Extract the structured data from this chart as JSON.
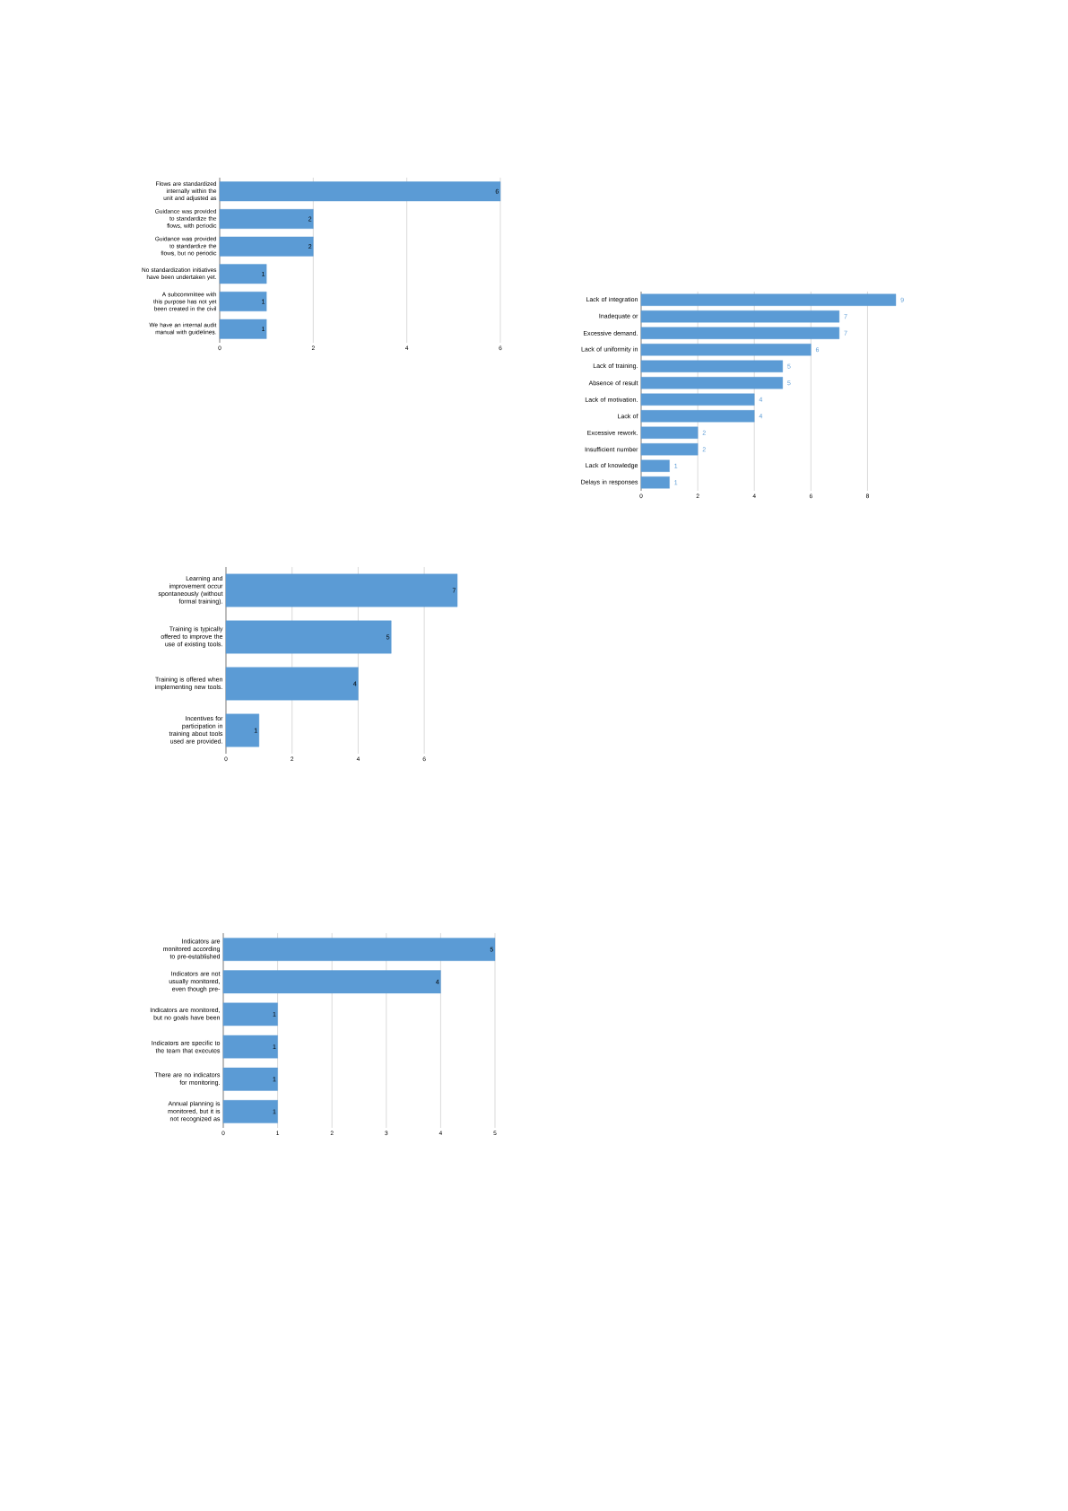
{
  "chart_data": [
    {
      "type": "bar",
      "orientation": "horizontal",
      "categories": [
        "Flows are standardized internally within the unit and adjusted as",
        "Guidance was provided to standardize the flows, with periodic",
        "Guidance was provided to standardize the flows, but no periodic",
        "No standardization initiatives have been undertaken yet.",
        "A subcommittee with this purpose has not yet been created in the civil",
        "We have an internal audit manual with guidelines."
      ],
      "values": [
        6,
        2,
        2,
        1,
        1,
        1
      ],
      "color": "#5b9bd5",
      "xlim": [
        0,
        6
      ],
      "xticks": [
        0,
        2,
        4,
        6
      ],
      "grid": "x",
      "data_labels": true
    },
    {
      "type": "bar",
      "orientation": "horizontal",
      "categories": [
        "Lack of integration",
        "Inadequate or",
        "Excessive demand.",
        "Lack of uniformity in",
        "Lack of training.",
        "Absence of result",
        "Lack of motivation.",
        "Lack of",
        "Excessive rework.",
        "Insufficient number",
        "Lack of knowledge",
        "Delays in responses"
      ],
      "values": [
        9,
        7,
        7,
        6,
        5,
        5,
        4,
        4,
        2,
        2,
        1,
        1
      ],
      "color": "#5b9bd5",
      "xlim": [
        0,
        9
      ],
      "xticks": [
        0,
        2,
        4,
        6,
        8
      ],
      "grid": "x",
      "data_labels": true
    },
    {
      "type": "bar",
      "orientation": "horizontal",
      "categories": [
        "Learning and improvement occur spontaneously (without formal training).",
        "Training is typically offered to improve the use of existing tools.",
        "Training is offered when implementing new tools.",
        "Incentives for participation in training about tools used are provided."
      ],
      "values": [
        7,
        5,
        4,
        1
      ],
      "color": "#5b9bd5",
      "xlim": [
        0,
        7
      ],
      "xticks": [
        0,
        2,
        4,
        6
      ],
      "grid": "x",
      "data_labels": true
    },
    {
      "type": "bar",
      "orientation": "horizontal",
      "categories": [
        "Indicators are monitored according to pre-established",
        "Indicators are not usually monitored, even though pre-",
        "Indicators are monitored, but no goals have been",
        "Indicators are specific to the team that executes",
        "There are no indicators for monitoring.",
        "Annual planning is monitored, but it is not recognized as"
      ],
      "values": [
        5,
        4,
        1,
        1,
        1,
        1
      ],
      "color": "#5b9bd5",
      "xlim": [
        0,
        5
      ],
      "xticks": [
        0,
        1,
        2,
        3,
        4,
        5
      ],
      "grid": "x",
      "data_labels": true
    }
  ]
}
